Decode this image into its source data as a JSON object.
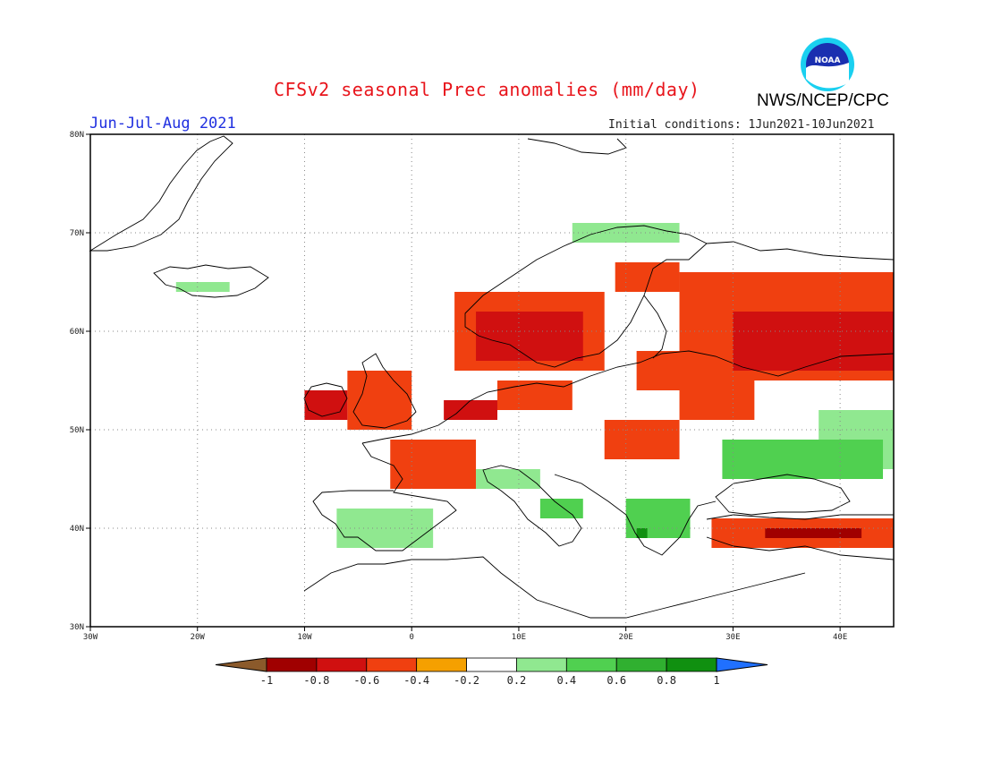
{
  "title": "CFSv2 seasonal Prec anomalies (mm/day)",
  "organization": "NWS/NCEP/CPC",
  "logo_text": "NOAA",
  "season": "Jun-Jul-Aug 2021",
  "initial_conditions": "Initial conditions: 1Jun2021-10Jun2021",
  "map": {
    "lon_range": [
      -30,
      45
    ],
    "lat_range": [
      30,
      80
    ],
    "lat_ticks": [
      {
        "value": 80,
        "label": "80N"
      },
      {
        "value": 70,
        "label": "70N"
      },
      {
        "value": 60,
        "label": "60N"
      },
      {
        "value": 50,
        "label": "50N"
      },
      {
        "value": 40,
        "label": "40N"
      },
      {
        "value": 30,
        "label": "30N"
      }
    ],
    "lon_ticks": [
      {
        "value": -30,
        "label": "30W"
      },
      {
        "value": -20,
        "label": "20W"
      },
      {
        "value": -10,
        "label": "10W"
      },
      {
        "value": 0,
        "label": "0"
      },
      {
        "value": 10,
        "label": "10E"
      },
      {
        "value": 20,
        "label": "20E"
      },
      {
        "value": 30,
        "label": "30E"
      },
      {
        "value": 40,
        "label": "40E"
      }
    ],
    "grid": true,
    "grid_style": "dotted"
  },
  "colorbar": {
    "labels": [
      "-1",
      "-0.8",
      "-0.6",
      "-0.4",
      "-0.2",
      "0.2",
      "0.4",
      "0.6",
      "0.8",
      "1"
    ],
    "colors": [
      "#8b5a2b",
      "#a00000",
      "#d01010",
      "#f04010",
      "#f5a000",
      "#ffffff",
      "#90e890",
      "#50d050",
      "#30b030",
      "#109010",
      "#2070ff"
    ]
  },
  "anomaly_regions": [
    {
      "name": "Scandinavia dry",
      "level": -0.6,
      "lon": [
        6,
        16
      ],
      "lat": [
        57,
        62
      ]
    },
    {
      "name": "Norway dry",
      "level": -0.4,
      "lon": [
        4,
        18
      ],
      "lat": [
        56,
        64
      ]
    },
    {
      "name": "Northern Finland",
      "level": -0.4,
      "lon": [
        19,
        25
      ],
      "lat": [
        64,
        67
      ]
    },
    {
      "name": "Western Russia dry",
      "level": -0.6,
      "lon": [
        30,
        45
      ],
      "lat": [
        56,
        62
      ]
    },
    {
      "name": "Russia dry broad",
      "level": -0.4,
      "lon": [
        25,
        45
      ],
      "lat": [
        55,
        66
      ]
    },
    {
      "name": "Baltics",
      "level": -0.4,
      "lon": [
        21,
        30
      ],
      "lat": [
        54,
        58
      ]
    },
    {
      "name": "Ireland",
      "level": -0.6,
      "lon": [
        -10,
        -6
      ],
      "lat": [
        51,
        54
      ]
    },
    {
      "name": "British Isles",
      "level": -0.4,
      "lon": [
        -6,
        0
      ],
      "lat": [
        50,
        56
      ]
    },
    {
      "name": "Benelux",
      "level": -0.6,
      "lon": [
        3,
        8
      ],
      "lat": [
        51,
        53
      ]
    },
    {
      "name": "North Germany",
      "level": -0.4,
      "lon": [
        8,
        15
      ],
      "lat": [
        52,
        55
      ]
    },
    {
      "name": "France",
      "level": -0.4,
      "lon": [
        -2,
        6
      ],
      "lat": [
        44,
        49
      ]
    },
    {
      "name": "Central Europe",
      "level": -0.4,
      "lon": [
        18,
        25
      ],
      "lat": [
        47,
        51
      ]
    },
    {
      "name": "Ukraine north",
      "level": -0.4,
      "lon": [
        25,
        32
      ],
      "lat": [
        51,
        55
      ]
    },
    {
      "name": "Iberia wet",
      "level": 0.4,
      "lon": [
        -7,
        2
      ],
      "lat": [
        38,
        42
      ]
    },
    {
      "name": "Balkans wet",
      "level": 0.6,
      "lon": [
        20,
        26
      ],
      "lat": [
        39,
        43
      ]
    },
    {
      "name": "Greece wet",
      "level": 1.0,
      "lon": [
        21,
        22
      ],
      "lat": [
        39,
        40
      ]
    },
    {
      "name": "Ukraine south wet",
      "level": 0.6,
      "lon": [
        29,
        44
      ],
      "lat": [
        45,
        49
      ]
    },
    {
      "name": "Russia south wet",
      "level": 0.4,
      "lon": [
        38,
        45
      ],
      "lat": [
        46,
        52
      ]
    },
    {
      "name": "North Africa wet",
      "level": 0.2,
      "lon": [
        -1,
        7
      ],
      "lat": [
        34,
        37
      ]
    },
    {
      "name": "Turkey dry",
      "level": -0.8,
      "lon": [
        33,
        42
      ],
      "lat": [
        39,
        40
      ]
    },
    {
      "name": "Turkey band",
      "level": -0.4,
      "lon": [
        28,
        45
      ],
      "lat": [
        38,
        41
      ]
    },
    {
      "name": "Iceland wet",
      "level": 0.4,
      "lon": [
        -22,
        -17
      ],
      "lat": [
        64,
        65
      ]
    },
    {
      "name": "Norway coast wet",
      "level": 0.4,
      "lon": [
        15,
        25
      ],
      "lat": [
        69,
        71
      ]
    },
    {
      "name": "Alps wet",
      "level": 0.4,
      "lon": [
        6,
        12
      ],
      "lat": [
        44,
        46
      ]
    },
    {
      "name": "Adriatic wet",
      "level": 0.6,
      "lon": [
        12,
        16
      ],
      "lat": [
        41,
        43
      ]
    },
    {
      "name": "Turkey north wet",
      "level": 0.2,
      "lon": [
        29,
        35
      ],
      "lat": [
        37,
        38
      ]
    }
  ]
}
